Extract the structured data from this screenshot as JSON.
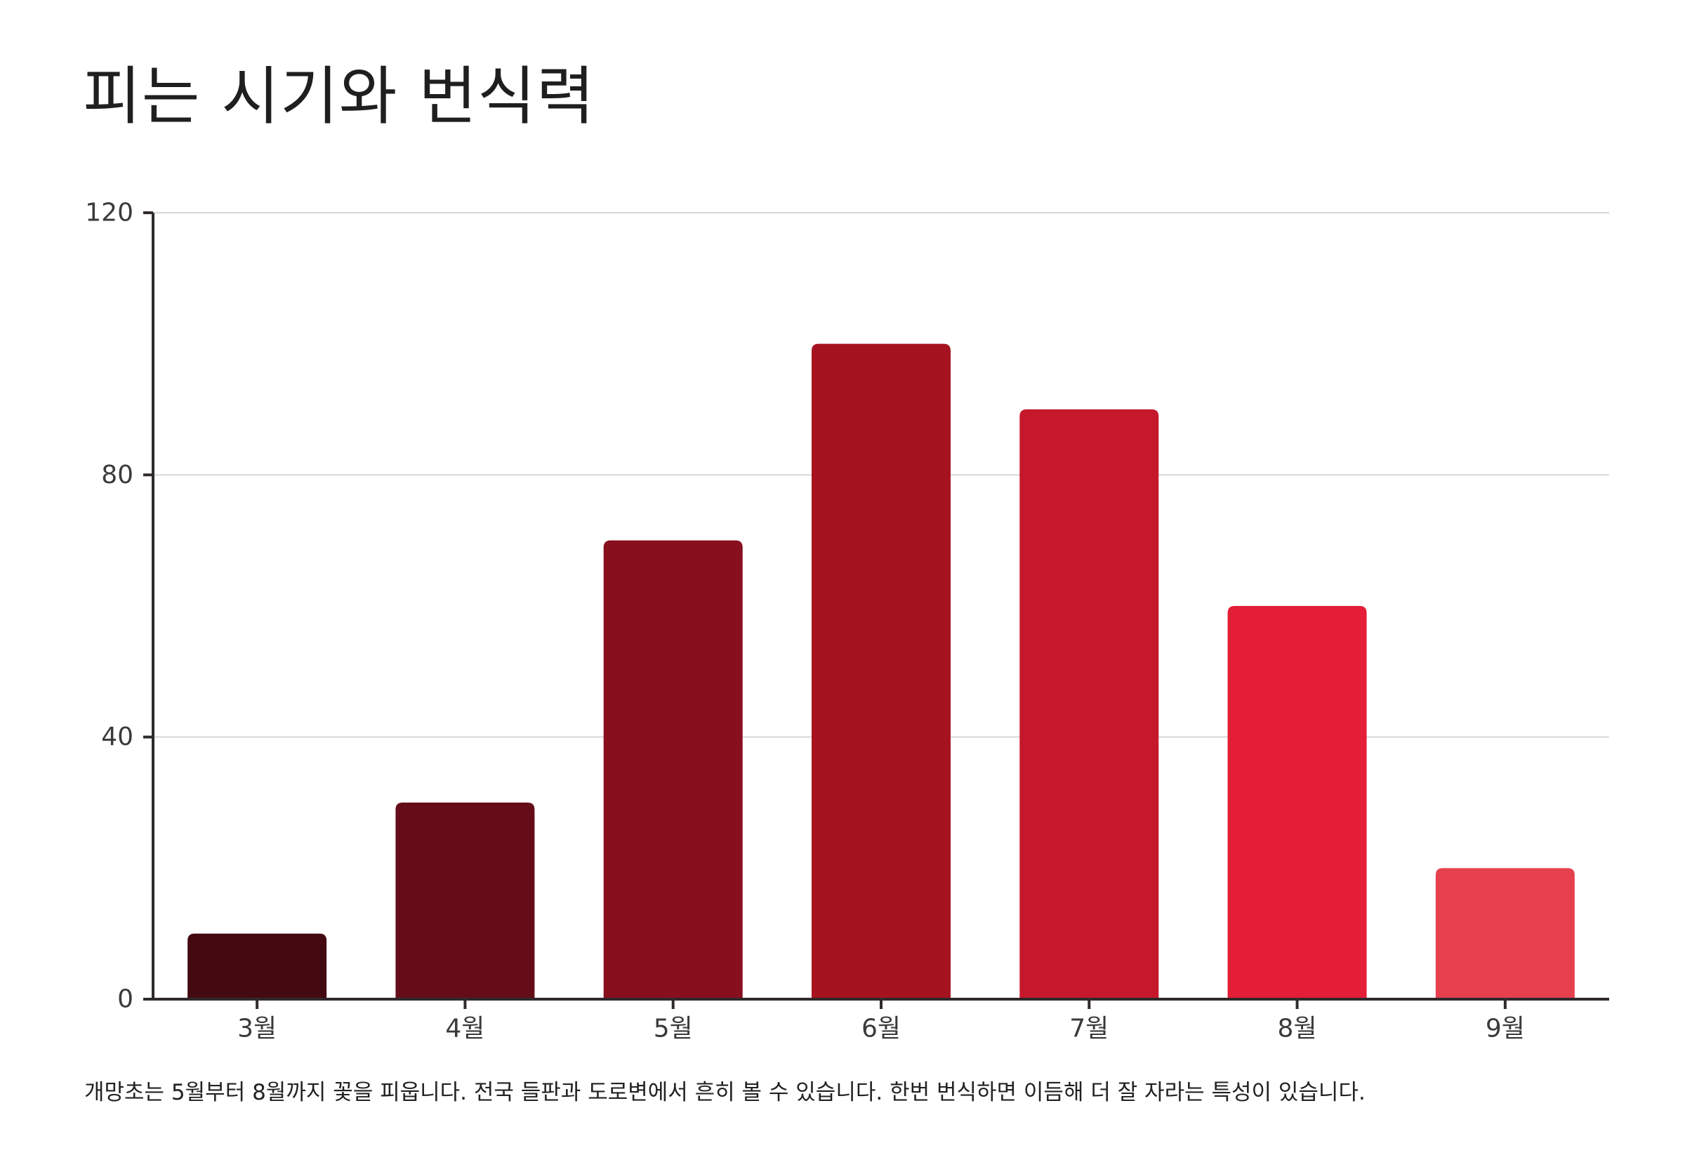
{
  "title": "피는 시기와 번식력",
  "caption": "개망초는 5월부터 8월까지 꽃을 피웁니다. 전국 들판과 도로변에서 흔히 볼 수 있습니다. 한번 번식하면 이듬해 더 잘 자라는 특성이 있습니다.",
  "chart_data": {
    "type": "bar",
    "categories": [
      "3월",
      "4월",
      "5월",
      "6월",
      "7월",
      "8월",
      "9월"
    ],
    "values": [
      10,
      30,
      70,
      100,
      90,
      60,
      20
    ],
    "ylim": [
      0,
      120
    ],
    "yticks": [
      0,
      40,
      80,
      120
    ],
    "xlabel": "",
    "ylabel": "",
    "grid": true,
    "legend": "none",
    "colors": [
      "#430a11",
      "#640d18",
      "#870f1e",
      "#a51321",
      "#c5182c",
      "#e31e36",
      "#e6404f"
    ],
    "axis_color": "#2f2a2b",
    "grid_color": "#d6d6d6"
  }
}
